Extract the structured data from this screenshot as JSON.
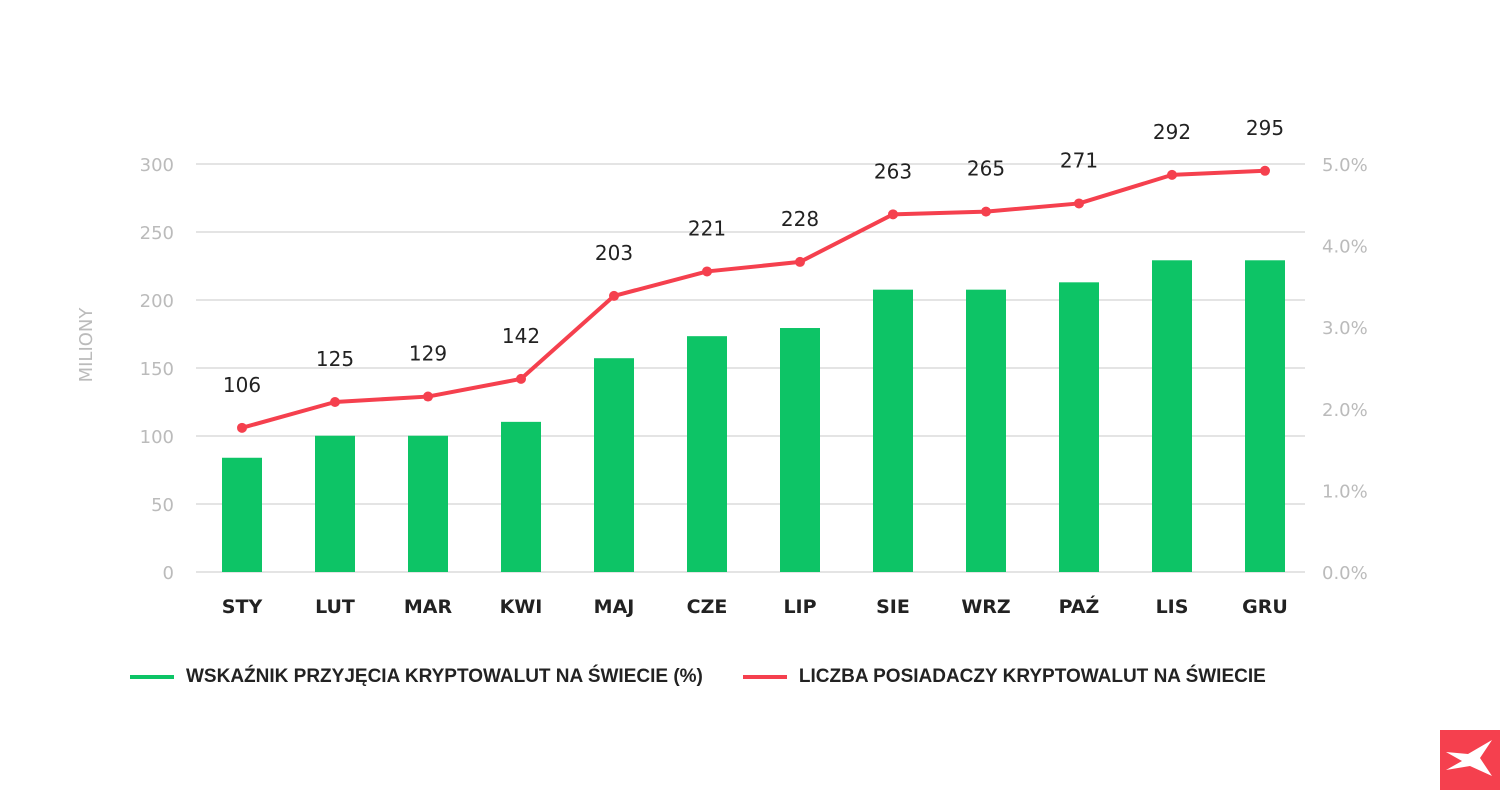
{
  "chart_data": {
    "type": "bar+line",
    "categories": [
      "STY",
      "LUT",
      "MAR",
      "KWI",
      "MAJ",
      "CZE",
      "LIP",
      "SIE",
      "WRZ",
      "PAŹ",
      "LIS",
      "GRU"
    ],
    "series": [
      {
        "name": "WSKAŹNIK PRZYJĘCIA KRYPTOWALUT NA ŚWIECIE (%)",
        "type": "bar",
        "axis": "right",
        "color": "#0dc466",
        "values": [
          1.4,
          1.67,
          1.67,
          1.84,
          2.62,
          2.89,
          2.99,
          3.46,
          3.46,
          3.55,
          3.82,
          3.82
        ]
      },
      {
        "name": "LICZBA POSIADACZY KRYPTOWALUT NA ŚWIECIE",
        "type": "line",
        "axis": "left",
        "color": "#f5404e",
        "values": [
          106,
          125,
          129,
          142,
          203,
          221,
          228,
          263,
          265,
          271,
          292,
          295
        ],
        "labels": [
          "106",
          "125",
          "129",
          "142",
          "203",
          "221",
          "228",
          "263",
          "265",
          "271",
          "292",
          "295"
        ]
      }
    ],
    "ylabel": "MILIONY",
    "ylim": [
      0,
      300
    ],
    "yticks": [
      "0",
      "50",
      "100",
      "150",
      "200",
      "250",
      "300"
    ],
    "y2lim": [
      0,
      5
    ],
    "y2ticks": [
      "0.0%",
      "1.0%",
      "2.0%",
      "3.0%",
      "4.0%",
      "5.0%"
    ],
    "grid": true,
    "legend_position": "bottom"
  },
  "logo": {
    "name": "xtb-logo-icon",
    "color": "#f5404e"
  }
}
